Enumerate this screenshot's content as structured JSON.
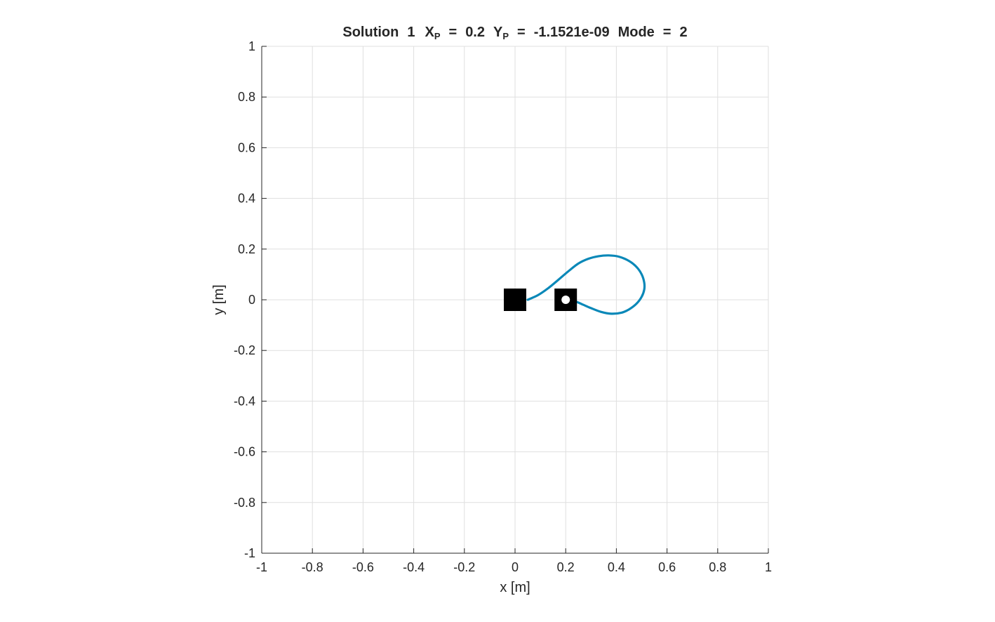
{
  "chart_data": {
    "type": "line",
    "title": {
      "prefix": "Solution",
      "solution": "1",
      "xp_symbol": "X",
      "xp_subscript": "P",
      "xp_value": "0.2",
      "yp_symbol": "Y",
      "yp_subscript": "P",
      "yp_value": "-1.1521e-09",
      "mode_label": "Mode",
      "mode_value": "2",
      "equals": "="
    },
    "xlabel": "x [m]",
    "ylabel": "y [m]",
    "xlim": [
      -1,
      1
    ],
    "ylim": [
      -1,
      1
    ],
    "xticks": [
      -1,
      -0.8,
      -0.6,
      -0.4,
      -0.2,
      0,
      0.2,
      0.4,
      0.6,
      0.8,
      1
    ],
    "yticks": [
      -1,
      -0.8,
      -0.6,
      -0.4,
      -0.2,
      0,
      0.2,
      0.4,
      0.6,
      0.8,
      1
    ],
    "xtick_labels": [
      "-1",
      "-0.8",
      "-0.6",
      "-0.4",
      "-0.2",
      "0",
      "0.2",
      "0.4",
      "0.6",
      "0.8",
      "1"
    ],
    "ytick_labels": [
      "-1",
      "-0.8",
      "-0.6",
      "-0.4",
      "-0.2",
      "0",
      "0.2",
      "0.4",
      "0.6",
      "0.8",
      "1"
    ],
    "grid": true,
    "series": [
      {
        "color": "#0a88b8",
        "x": [
          0.05,
          0.09,
          0.13,
          0.17,
          0.21,
          0.25,
          0.29,
          0.33,
          0.37,
          0.41,
          0.45,
          0.48,
          0.5,
          0.51,
          0.51,
          0.5,
          0.48,
          0.45,
          0.42,
          0.38,
          0.34,
          0.3,
          0.27,
          0.25,
          0.23,
          0.22
        ],
        "y": [
          0.0,
          0.018,
          0.045,
          0.078,
          0.112,
          0.143,
          0.162,
          0.172,
          0.175,
          0.17,
          0.153,
          0.129,
          0.1,
          0.068,
          0.04,
          0.012,
          -0.015,
          -0.038,
          -0.051,
          -0.055,
          -0.048,
          -0.033,
          -0.02,
          -0.011,
          -0.005,
          -0.002
        ]
      }
    ],
    "markers": [
      {
        "type": "filled-square",
        "x": 0,
        "y": 0,
        "color": "#000000"
      },
      {
        "type": "square-with-dot",
        "x": 0.2,
        "y": 0,
        "color": "#000000",
        "dot_color": "#ffffff"
      }
    ]
  }
}
